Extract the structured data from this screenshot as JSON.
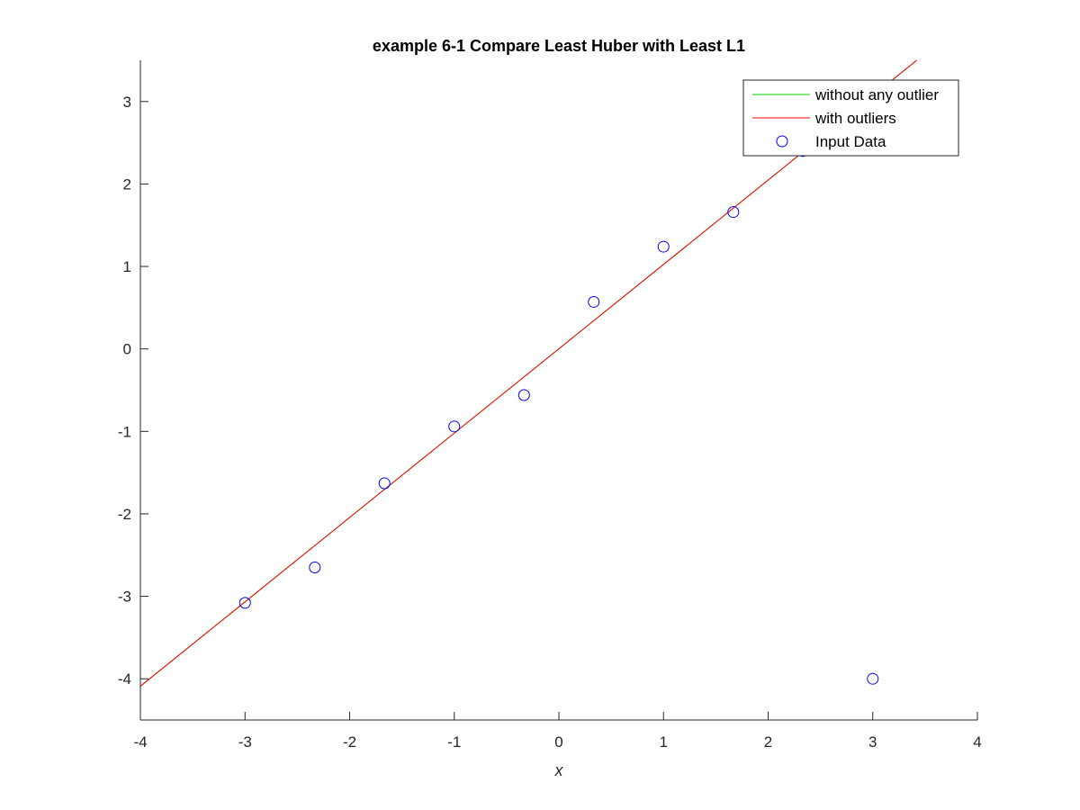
{
  "chart_data": {
    "type": "scatter",
    "title": "example 6-1 Compare Least Huber with Least L1",
    "xlabel": "x",
    "ylabel": "",
    "xlim": [
      -4,
      4
    ],
    "ylim": [
      -4.5,
      3.5
    ],
    "xticks": [
      -4,
      -3,
      -2,
      -1,
      0,
      1,
      2,
      3,
      4
    ],
    "yticks": [
      -4,
      -3,
      -2,
      -1,
      0,
      1,
      2,
      3
    ],
    "xtick_labels": [
      "-4",
      "-3",
      "-2",
      "-1",
      "0",
      "1",
      "2",
      "3",
      "4"
    ],
    "ytick_labels": [
      "-4",
      "-3",
      "-2",
      "-1",
      "0",
      "1",
      "2",
      "3"
    ],
    "grid": false,
    "legend_position": "top-right",
    "series": [
      {
        "name": "without any outlier",
        "kind": "line",
        "color": "#00cc00",
        "x": [
          -4,
          3.42
        ],
        "y": [
          -4.09,
          3.5
        ]
      },
      {
        "name": "with outliers",
        "kind": "line",
        "color": "#ff0000",
        "x": [
          -4,
          3.42
        ],
        "y": [
          -4.09,
          3.5
        ]
      },
      {
        "name": "Input Data",
        "kind": "marker",
        "marker": "circle",
        "color": "#0000ff",
        "x": [
          -3,
          -2.333,
          -1.667,
          -1,
          -0.333,
          0.333,
          1,
          1.667,
          2.333,
          3
        ],
        "y": [
          -3.08,
          -2.65,
          -1.63,
          -0.94,
          -0.56,
          0.57,
          1.24,
          1.66,
          2.4,
          -4.0
        ]
      }
    ]
  }
}
